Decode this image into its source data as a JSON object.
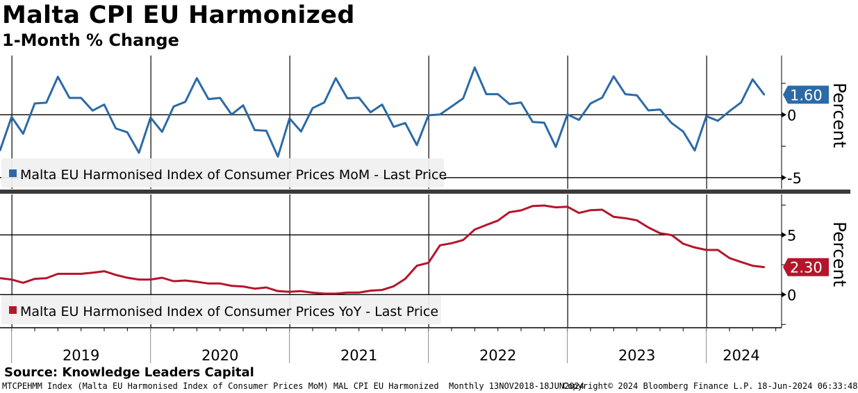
{
  "header": {
    "title": "Malta CPI EU Harmonized",
    "subtitle": "1-Month % Change"
  },
  "footer": {
    "source": "Source: Knowledge Leaders Capital",
    "description": "MTCPEHMM Index (Malta EU Harmonised Index of Consumer Prices MoM) MAL CPI EU Harmonized  Monthly 13NOV2018-18JUN2024",
    "copyright": "Copyright© 2024 Bloomberg Finance L.P.",
    "timestamp": "18-Jun-2024 06:33:48"
  },
  "chart_data": [
    {
      "type": "line",
      "title": "Malta EU Harmonised Index of Consumer Prices MoM",
      "legend": "Malta EU Harmonised Index of Consumer Prices MoM - Last Price",
      "legend_placement": "bottom-left",
      "ylabel": "Percent",
      "ylim": [
        -5.9,
        4.7
      ],
      "yticks": [
        0,
        -5
      ],
      "ytick_labels": [
        "0",
        "-5"
      ],
      "color": "#2b6aa6",
      "last_value_label": "1.60",
      "x_start": "2018-11",
      "x_end": "2024-05",
      "values": [
        -2.84,
        -0.17,
        -1.51,
        0.9,
        0.96,
        3.02,
        1.34,
        1.34,
        0.33,
        0.81,
        -1.09,
        -1.4,
        -3.02,
        -0.22,
        -1.36,
        0.66,
        1.03,
        2.91,
        1.25,
        1.34,
        0.02,
        0.75,
        -1.22,
        -1.27,
        -3.33,
        -0.29,
        -1.33,
        0.53,
        0.98,
        2.91,
        1.31,
        1.36,
        0.2,
        0.81,
        -0.96,
        -0.66,
        -2.41,
        -0.04,
        0.02,
        0.66,
        1.31,
        3.76,
        1.64,
        1.64,
        0.85,
        0.98,
        -0.57,
        -0.63,
        -2.56,
        0.02,
        -0.41,
        0.9,
        1.36,
        3.06,
        1.64,
        1.55,
        0.35,
        0.42,
        -0.66,
        -1.33,
        -2.84,
        -0.11,
        -0.48,
        0.29,
        0.98,
        2.82,
        1.6
      ]
    },
    {
      "type": "line",
      "title": "Malta EU Harmonised Index of Consumer Prices YoY",
      "legend": "Malta EU Harmonised Index of Consumer Prices YoY - Last Price",
      "legend_placement": "bottom-left",
      "ylabel": "Percent",
      "ylim": [
        -2.8,
        8.4
      ],
      "yticks": [
        5,
        0
      ],
      "ytick_labels": [
        "5",
        "0"
      ],
      "color": "#b5152b",
      "last_value_label": "2.30",
      "x_start": "2018-11",
      "x_end": "2024-05",
      "values": [
        1.38,
        1.26,
        0.99,
        1.32,
        1.38,
        1.74,
        1.74,
        1.74,
        1.84,
        1.96,
        1.65,
        1.41,
        1.26,
        1.26,
        1.41,
        1.12,
        1.18,
        1.07,
        0.93,
        0.93,
        0.74,
        0.68,
        0.5,
        0.6,
        0.29,
        0.23,
        0.29,
        0.16,
        0.08,
        0.08,
        0.17,
        0.17,
        0.33,
        0.39,
        0.7,
        1.32,
        2.42,
        2.66,
        4.13,
        4.3,
        4.57,
        5.45,
        5.83,
        6.2,
        6.9,
        7.05,
        7.42,
        7.46,
        7.31,
        7.36,
        6.84,
        7.07,
        7.11,
        6.51,
        6.4,
        6.22,
        5.62,
        5.14,
        4.98,
        4.26,
        3.95,
        3.74,
        3.74,
        3.06,
        2.73,
        2.42,
        2.3
      ]
    }
  ],
  "x_axis": {
    "year_labels": [
      "2019",
      "2020",
      "2021",
      "2022",
      "2023",
      "2024"
    ]
  }
}
